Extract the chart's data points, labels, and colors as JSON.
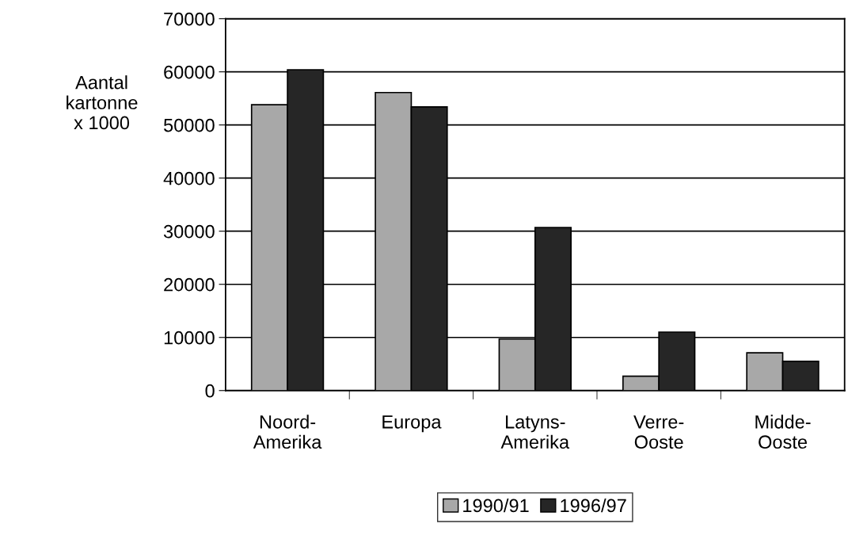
{
  "chart_data": {
    "type": "bar",
    "ylabel": "Aantal\nkartonne\nx 1000",
    "categories": [
      "Noord-\nAmerika",
      "Europa",
      "Latyns-\nAmerika",
      "Verre-\nOoste",
      "Midde-\nOoste"
    ],
    "series": [
      {
        "name": "1990/91",
        "color": "#a8a8a8",
        "values": [
          53800,
          56100,
          9700,
          2700,
          7100
        ]
      },
      {
        "name": "1996/97",
        "color": "#262626",
        "values": [
          60400,
          53400,
          30700,
          11000,
          5500
        ]
      }
    ],
    "ylim": [
      0,
      70000
    ],
    "yticks": [
      0,
      10000,
      20000,
      30000,
      40000,
      50000,
      60000,
      70000
    ],
    "grid": "y",
    "legend": "bottom"
  }
}
